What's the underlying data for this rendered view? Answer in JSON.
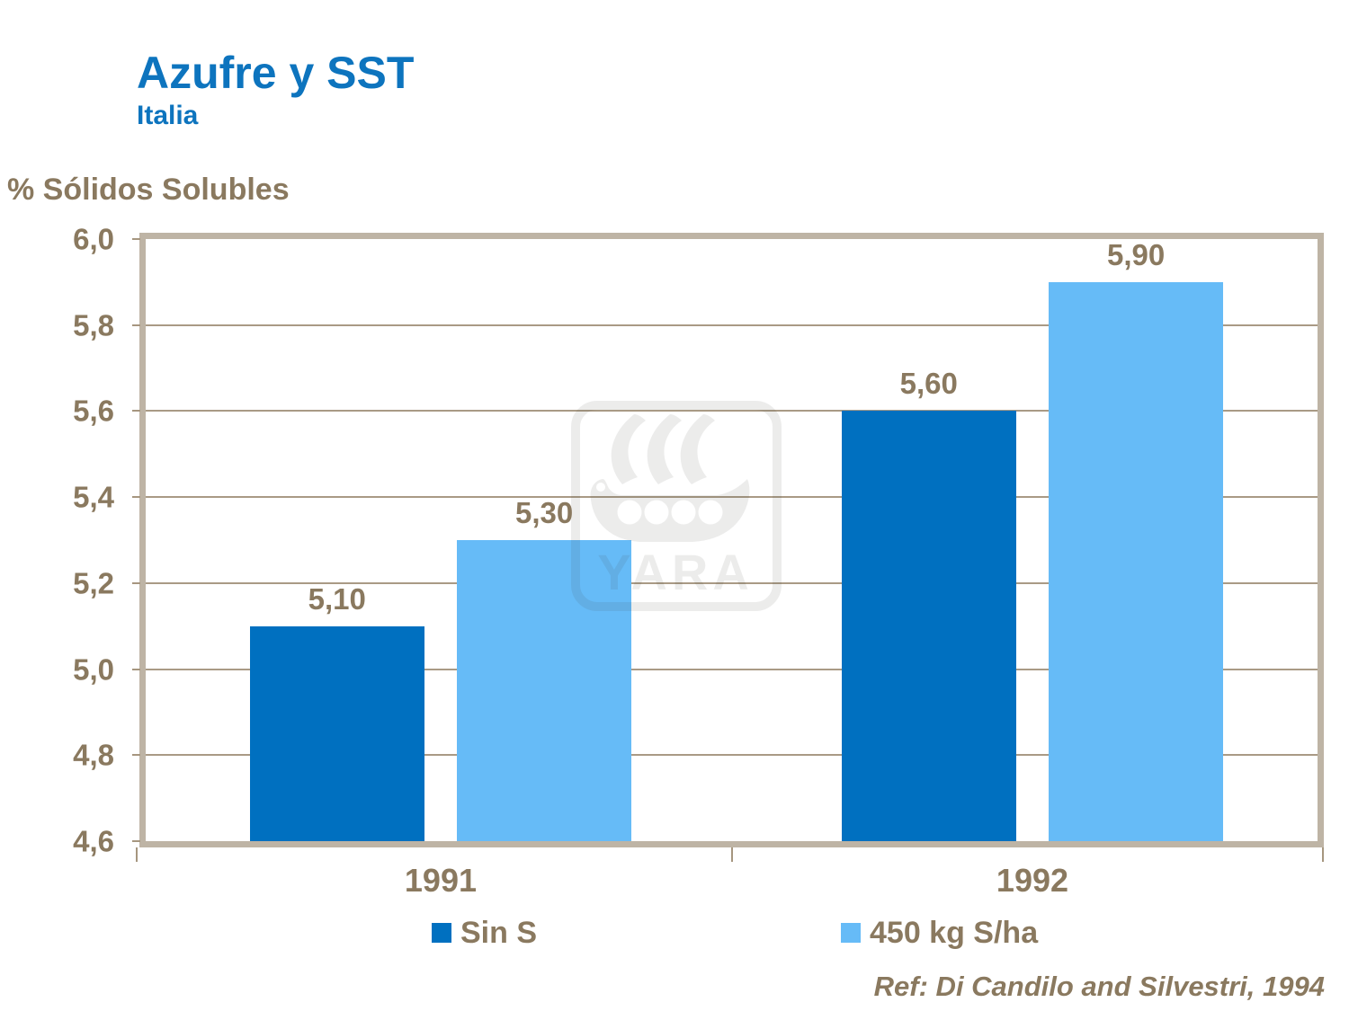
{
  "header": {
    "title": "Azufre y SST",
    "subtitle": "Italia"
  },
  "chart_data": {
    "type": "bar",
    "axis_title": "% Sólidos Solubles",
    "categories": [
      "1991",
      "1992"
    ],
    "series": [
      {
        "name": "Sin S",
        "color": "#0070C0",
        "values": [
          5.1,
          5.6
        ],
        "value_labels": [
          "5,10",
          "5,60"
        ]
      },
      {
        "name": "450 kg S/ha",
        "color": "#66BBF7",
        "values": [
          5.3,
          5.9
        ],
        "value_labels": [
          "5,30",
          "5,90"
        ]
      }
    ],
    "ylim": [
      4.6,
      6.0
    ],
    "ytick_step": 0.2,
    "ytick_labels": [
      "6,0",
      "5,8",
      "5,6",
      "5,4",
      "5,2",
      "5,0",
      "4,8",
      "4,6"
    ],
    "grid": true,
    "legend_position": "bottom"
  },
  "footer": {
    "reference": "Ref: Di Candilo and Silvestri, 1994"
  },
  "watermark": {
    "text": "YARA",
    "icon": "viking-ship-icon"
  },
  "colors": {
    "title_blue": "#0D74BE",
    "text_brown": "#8A795F",
    "plot_border": "#BEB4A5",
    "gridline": "#A99A85",
    "bar_dark_blue": "#0070C0",
    "bar_light_blue": "#66BBF7"
  }
}
